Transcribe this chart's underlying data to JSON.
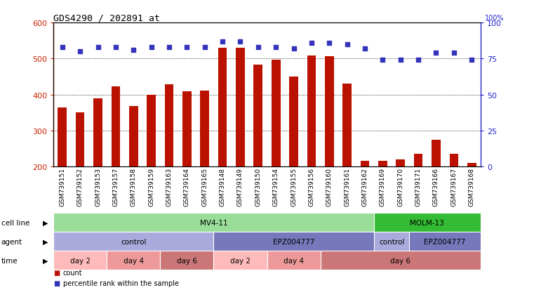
{
  "title": "GDS4290 / 202891_at",
  "samples": [
    "GSM739151",
    "GSM739152",
    "GSM739153",
    "GSM739157",
    "GSM739158",
    "GSM739159",
    "GSM739163",
    "GSM739164",
    "GSM739165",
    "GSM739148",
    "GSM739149",
    "GSM739150",
    "GSM739154",
    "GSM739155",
    "GSM739156",
    "GSM739160",
    "GSM739161",
    "GSM739162",
    "GSM739169",
    "GSM739170",
    "GSM739171",
    "GSM739166",
    "GSM739167",
    "GSM739168"
  ],
  "counts": [
    365,
    350,
    390,
    422,
    368,
    400,
    428,
    408,
    410,
    530,
    530,
    483,
    497,
    450,
    508,
    506,
    430,
    215,
    215,
    220,
    235,
    275,
    235,
    210
  ],
  "percentile_ranks": [
    83,
    80,
    83,
    83,
    81,
    83,
    83,
    83,
    83,
    87,
    87,
    83,
    83,
    82,
    86,
    86,
    85,
    82,
    74,
    74,
    74,
    79,
    79,
    74
  ],
  "ylim_left": [
    200,
    600
  ],
  "ylim_right": [
    0,
    100
  ],
  "yticks_left": [
    200,
    300,
    400,
    500,
    600
  ],
  "yticks_right": [
    0,
    25,
    50,
    75,
    100
  ],
  "bar_color": "#bb1100",
  "dot_color": "#3333bb",
  "bg_color": "#ffffff",
  "cell_line_row": [
    {
      "label": "MV4-11",
      "start": 0,
      "end": 18,
      "color": "#99dd99"
    },
    {
      "label": "MOLM-13",
      "start": 18,
      "end": 24,
      "color": "#33bb33"
    }
  ],
  "agent_row": [
    {
      "label": "control",
      "start": 0,
      "end": 9,
      "color": "#aaaadd"
    },
    {
      "label": "EPZ004777",
      "start": 9,
      "end": 18,
      "color": "#7777bb"
    },
    {
      "label": "control",
      "start": 18,
      "end": 20,
      "color": "#aaaadd"
    },
    {
      "label": "EPZ004777",
      "start": 20,
      "end": 24,
      "color": "#7777bb"
    }
  ],
  "time_row": [
    {
      "label": "day 2",
      "start": 0,
      "end": 3,
      "color": "#ffbbbb"
    },
    {
      "label": "day 4",
      "start": 3,
      "end": 6,
      "color": "#ee9999"
    },
    {
      "label": "day 6",
      "start": 6,
      "end": 9,
      "color": "#cc7777"
    },
    {
      "label": "day 2",
      "start": 9,
      "end": 12,
      "color": "#ffbbbb"
    },
    {
      "label": "day 4",
      "start": 12,
      "end": 15,
      "color": "#ee9999"
    },
    {
      "label": "day 6",
      "start": 15,
      "end": 24,
      "color": "#cc7777"
    }
  ]
}
